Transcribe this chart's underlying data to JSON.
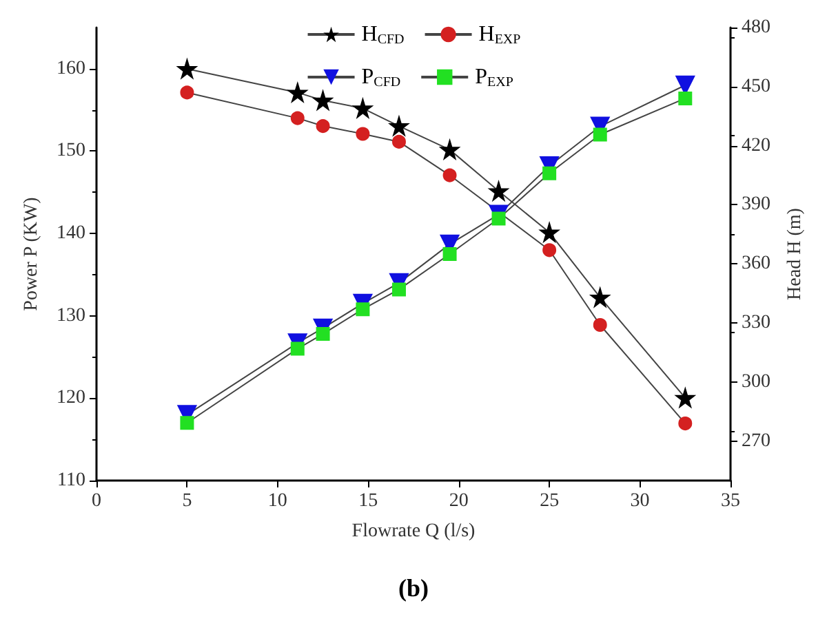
{
  "chart_data": {
    "type": "line",
    "xlabel": "Flowrate Q (l/s)",
    "ylabel": "Power P (KW)",
    "y2label": "Head H (m)",
    "annotations": [
      "(b)"
    ],
    "xlim": [
      0,
      35
    ],
    "xticks": [
      0,
      5,
      10,
      15,
      20,
      25,
      30,
      35
    ],
    "ylim": [
      110,
      165
    ],
    "yticks": [
      110,
      120,
      130,
      140,
      150,
      160
    ],
    "y2lim": [
      250,
      480
    ],
    "y2ticks": [
      270,
      300,
      330,
      360,
      390,
      420,
      450,
      480
    ],
    "grid": false,
    "legend": "top",
    "line_style": "solid",
    "x": [
      5,
      11.1,
      12.5,
      14.7,
      16.7,
      19.5,
      22.2,
      25,
      27.8,
      32.5
    ],
    "series": [
      {
        "name": "H$_{CFD}$",
        "color": "#000000",
        "marker": "star",
        "axis": "y2",
        "values": [
          459,
          447,
          443,
          439,
          430,
          418,
          397,
          376,
          343,
          292
        ]
      },
      {
        "name": "H$_{EXP}$",
        "color": "#d42020",
        "marker": "circle",
        "axis": "y2",
        "values": [
          447,
          434,
          430,
          426,
          422,
          405,
          null,
          367,
          329,
          279
        ]
      },
      {
        "name": "P$_{CFD}$",
        "color": "#1010e0",
        "marker": "triangle",
        "values": [
          118,
          126.7,
          128.5,
          131.5,
          134,
          138.7,
          142.3,
          148.2,
          153,
          158
        ]
      },
      {
        "name": "P$_{EXP}$",
        "color": "#22e022",
        "marker": "square",
        "values": [
          117,
          126,
          127.8,
          130.8,
          133.2,
          137.5,
          141.8,
          147.3,
          152,
          156.4
        ]
      }
    ]
  }
}
